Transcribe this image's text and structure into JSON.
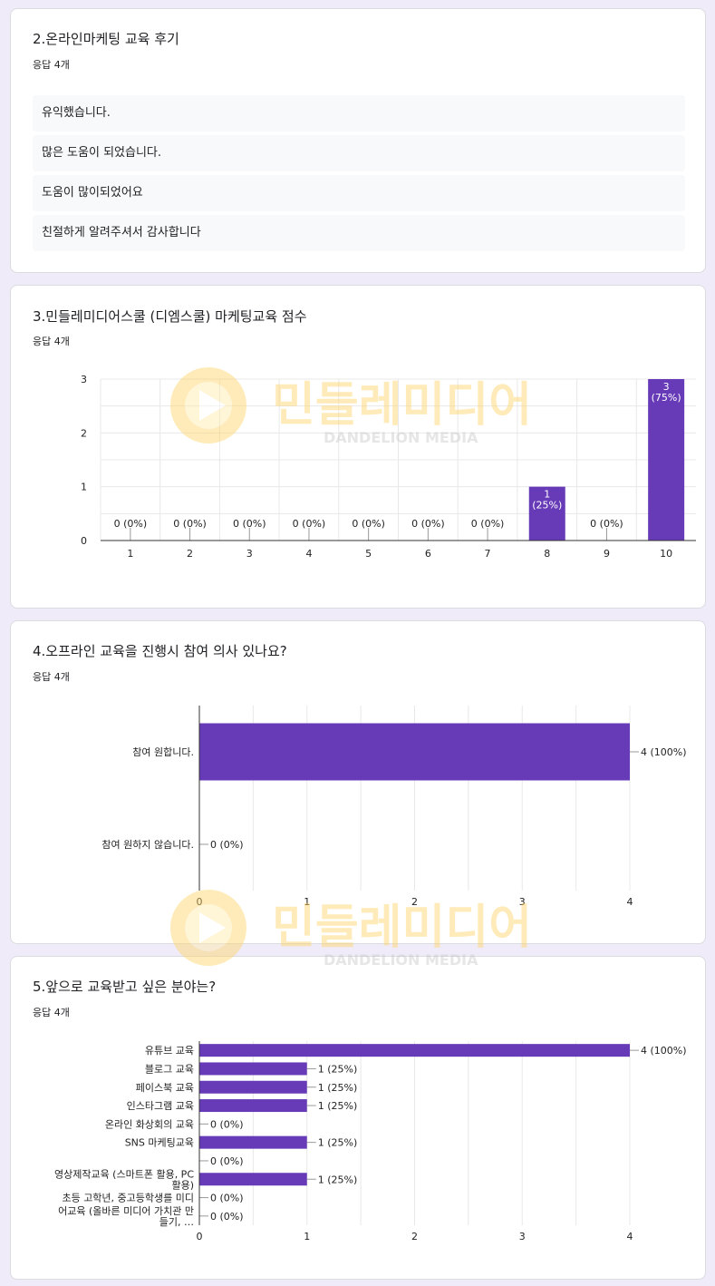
{
  "q2": {
    "title": "2.온라인마케팅 교육 후기",
    "count": "응답 4개",
    "responses": [
      "유익했습니다.",
      "많은 도움이 되었습니다.",
      "도움이 많이되었어요",
      "친절하게 알려주셔서 감사합니다"
    ]
  },
  "q3": {
    "title": "3.민들레미디어스쿨 (디엠스쿨) 마케팅교육 점수",
    "count": "응답 4개"
  },
  "q4": {
    "title": "4.오프라인 교육을 진행시 참여 의사 있나요?",
    "count": "응답 4개"
  },
  "q5": {
    "title": "5.앞으로 교육받고 싶은 분야는?",
    "count": "응답 4개"
  },
  "watermark": {
    "name": "민들레미디어",
    "sub": "DANDELION MEDIA"
  },
  "colors": {
    "bar": "#673ab7",
    "grid": "#e8e8e8",
    "watermark": "#ffdd88"
  },
  "chart_data": [
    {
      "type": "bar",
      "categories": [
        "1",
        "2",
        "3",
        "4",
        "5",
        "6",
        "7",
        "8",
        "9",
        "10"
      ],
      "values": [
        0,
        0,
        0,
        0,
        0,
        0,
        0,
        1,
        0,
        3
      ],
      "labels": [
        "0 (0%)",
        "0 (0%)",
        "0 (0%)",
        "0 (0%)",
        "0 (0%)",
        "0 (0%)",
        "0 (0%)",
        "1\n(25%)",
        "0 (0%)",
        "3\n(75%)"
      ],
      "ylim": [
        0,
        3
      ],
      "yticks": [
        "0",
        "1",
        "2",
        "3"
      ],
      "grid": true
    },
    {
      "type": "bar",
      "orientation": "horizontal",
      "categories": [
        "참여 원합니다.",
        "참여 원하지 않습니다."
      ],
      "values": [
        4,
        0
      ],
      "labels": [
        "4 (100%)",
        "0 (0%)"
      ],
      "xlim": [
        0,
        4
      ],
      "xticks": [
        "0",
        "1",
        "2",
        "3",
        "4"
      ],
      "grid": true
    },
    {
      "type": "bar",
      "orientation": "horizontal",
      "categories": [
        [
          "유튜브 교육"
        ],
        [
          "블로그 교육"
        ],
        [
          "페이스북 교육"
        ],
        [
          "인스타그램 교육"
        ],
        [
          "온라인 화상회의 교육"
        ],
        [
          "SNS 마케팅교육"
        ],
        [],
        [
          "영상제작교육 (스마트폰 활용, PC",
          "활용)"
        ],
        [
          "초등 고학년, 중고등학생를 미디"
        ],
        [
          "어교육 (올바른 미디어 가치관 만",
          "들기, …"
        ]
      ],
      "values": [
        4,
        1,
        1,
        1,
        0,
        1,
        0,
        1,
        0,
        0
      ],
      "labels": [
        "4 (100%)",
        "1 (25%)",
        "1 (25%)",
        "1 (25%)",
        "0 (0%)",
        "1 (25%)",
        "0 (0%)",
        "1 (25%)",
        "0 (0%)",
        "0 (0%)"
      ],
      "xlim": [
        0,
        4
      ],
      "xticks": [
        "0",
        "1",
        "2",
        "3",
        "4"
      ],
      "grid": true
    }
  ]
}
